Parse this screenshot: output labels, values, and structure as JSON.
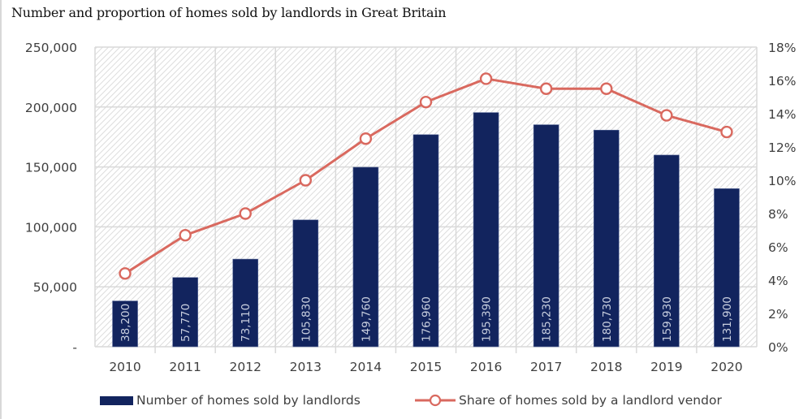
{
  "title": "Number and proportion of homes sold by landlords in Great Britain",
  "colors": {
    "bar": "#12245e",
    "line": "#d9695f",
    "grid": "#d9d9d9",
    "hatch": "#dedede"
  },
  "chart_data": {
    "type": "bar+line",
    "title": "Number and proportion of homes sold by landlords in Great Britain",
    "categories": [
      "2010",
      "2011",
      "2012",
      "2013",
      "2014",
      "2015",
      "2016",
      "2017",
      "2018",
      "2019",
      "2020"
    ],
    "series": [
      {
        "name": "Number of homes sold by landlords",
        "type": "bar",
        "axis": "left",
        "values": [
          38200,
          57770,
          73110,
          105830,
          149760,
          176960,
          195390,
          185230,
          180730,
          159930,
          131900
        ],
        "labels": [
          "38,200",
          "57,770",
          "73,110",
          "105,830",
          "149,760",
          "176,960",
          "195,390",
          "185,230",
          "180,730",
          "159,930",
          "131,900"
        ]
      },
      {
        "name": "Share of homes sold by a landlord vendor",
        "type": "line",
        "axis": "right",
        "values": [
          4.4,
          6.7,
          8.0,
          10.0,
          12.5,
          14.7,
          16.1,
          15.5,
          15.5,
          13.9,
          12.9
        ]
      }
    ],
    "y_left": {
      "range": [
        0,
        250000
      ],
      "ticks": [
        "-",
        "50,000",
        "100,000",
        "150,000",
        "200,000",
        "250,000"
      ],
      "tick_values": [
        0,
        50000,
        100000,
        150000,
        200000,
        250000
      ]
    },
    "y_right": {
      "range": [
        0,
        18
      ],
      "ticks": [
        "0%",
        "2%",
        "4%",
        "6%",
        "8%",
        "10%",
        "12%",
        "14%",
        "16%",
        "18%"
      ],
      "tick_values": [
        0,
        2,
        4,
        6,
        8,
        10,
        12,
        14,
        16,
        18
      ]
    },
    "grid": true,
    "legend": {
      "position": "bottom",
      "entries": [
        "Number of homes sold by landlords",
        "Share of homes sold by a landlord vendor"
      ]
    }
  }
}
